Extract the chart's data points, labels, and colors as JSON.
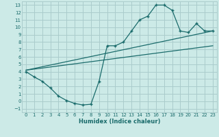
{
  "background_color": "#cceae7",
  "grid_color": "#aacccc",
  "line_color": "#1a6b6b",
  "xlabel": "Humidex (Indice chaleur)",
  "xlim": [
    -0.5,
    23.5
  ],
  "ylim": [
    -1.5,
    13.5
  ],
  "xticks": [
    0,
    1,
    2,
    3,
    4,
    5,
    6,
    7,
    8,
    9,
    10,
    11,
    12,
    13,
    14,
    15,
    16,
    17,
    18,
    19,
    20,
    21,
    22,
    23
  ],
  "yticks": [
    -1,
    0,
    1,
    2,
    3,
    4,
    5,
    6,
    7,
    8,
    9,
    10,
    11,
    12,
    13
  ],
  "line1_x": [
    0,
    1,
    2,
    3,
    4,
    5,
    6,
    7,
    8,
    9,
    10,
    11,
    12,
    13,
    14,
    15,
    16,
    17,
    18,
    19,
    20,
    21,
    22,
    23
  ],
  "line1_y": [
    4,
    3.3,
    2.7,
    1.8,
    0.7,
    0.1,
    -0.3,
    -0.5,
    -0.4,
    2.7,
    7.5,
    7.5,
    8.0,
    9.5,
    11.0,
    11.5,
    13.0,
    13.0,
    12.3,
    9.5,
    9.3,
    10.5,
    9.5,
    9.5
  ],
  "line2_x": [
    0,
    23
  ],
  "line2_y": [
    4.2,
    9.5
  ],
  "line3_x": [
    0,
    23
  ],
  "line3_y": [
    4.2,
    7.5
  ]
}
